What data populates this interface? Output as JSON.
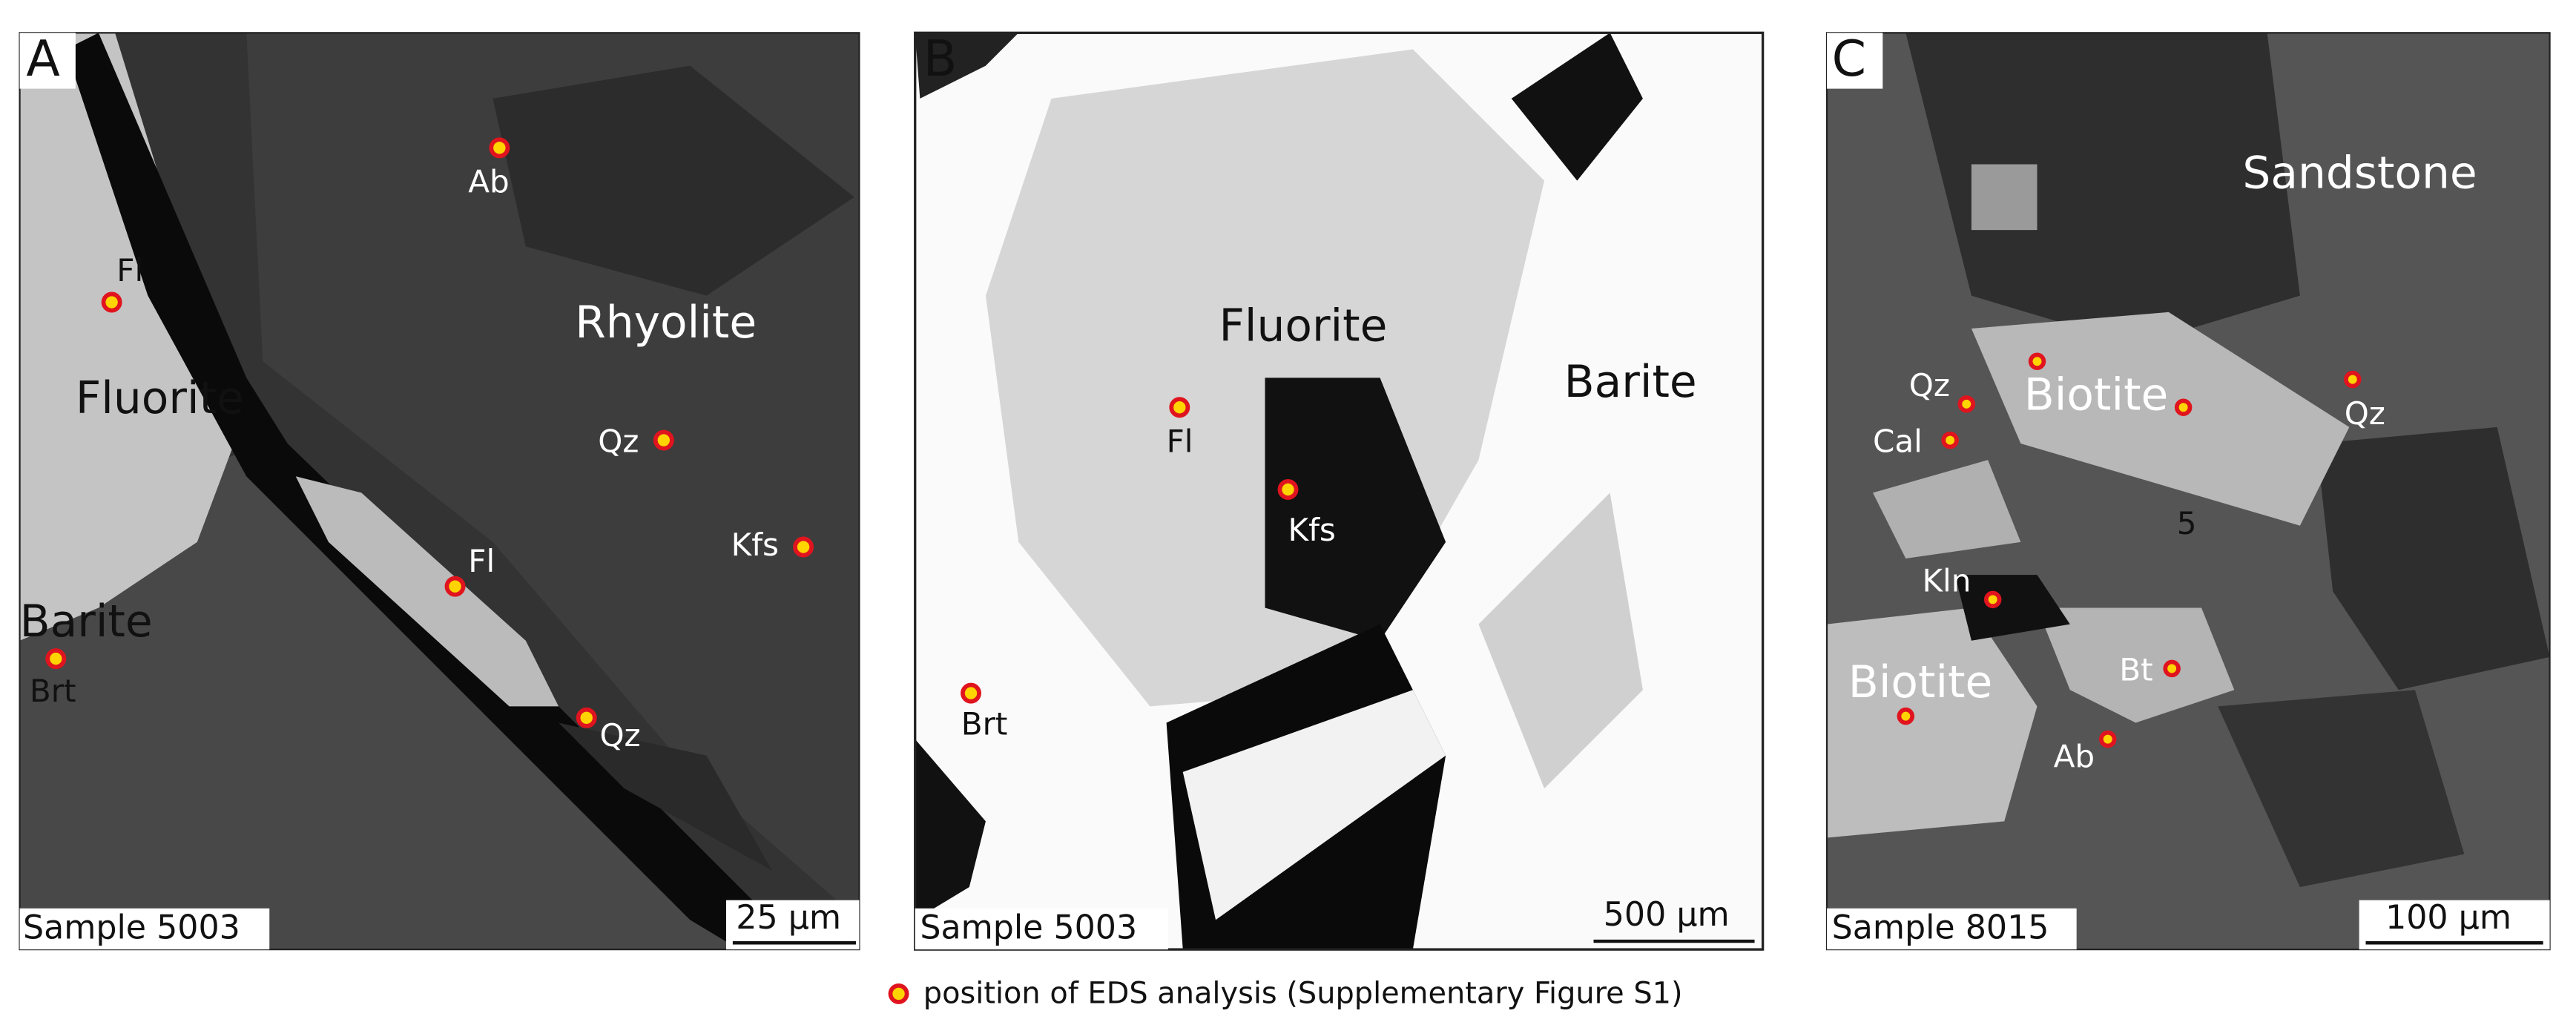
{
  "panels": [
    {
      "letter": "A",
      "sample": "Sample 5003",
      "scale": "25 µm",
      "labels": [
        "Ab",
        "Rhyolite",
        "Fl",
        "Fluorite",
        "Qz",
        "Kfs",
        "Fl",
        "Barite",
        "Brt",
        "Qz"
      ]
    },
    {
      "letter": "B",
      "sample": "Sample 5003",
      "scale": "500 µm",
      "labels": [
        "Fluorite",
        "Barite",
        "Fl",
        "Kfs",
        "Brt"
      ]
    },
    {
      "letter": "C",
      "sample": "Sample 8015",
      "scale": "100 µm",
      "labels": [
        "Sandstone",
        "Qz",
        "Biotite",
        "Qz",
        "Cal",
        "5",
        "Kln",
        "Bt",
        "Biotite",
        "Ab"
      ]
    }
  ],
  "legend": "position of EDS analysis (Supplementary Figure S1)"
}
